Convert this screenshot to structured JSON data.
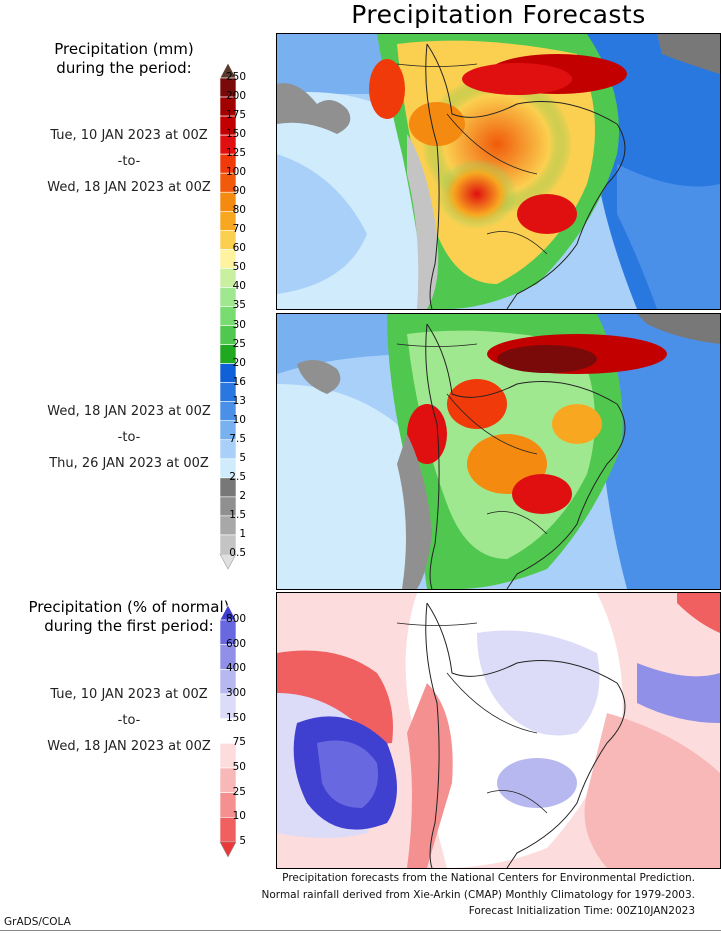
{
  "title": "Precipitation Forecasts",
  "legend_mm": {
    "heading": [
      "Precipitation (mm)",
      "during the period:"
    ],
    "labels": [
      "250",
      "200",
      "175",
      "150",
      "125",
      "100",
      "90",
      "80",
      "70",
      "60",
      "50",
      "40",
      "35",
      "30",
      "25",
      "20",
      "16",
      "13",
      "10",
      "7.5",
      "5",
      "2.5",
      "2",
      "1.5",
      "1",
      "0.5"
    ],
    "colors": [
      "#5a3a2e",
      "#7a0a0a",
      "#a00000",
      "#c20000",
      "#e01010",
      "#f03a0a",
      "#f05a0a",
      "#f58a10",
      "#f8a820",
      "#fbd050",
      "#fff3a0",
      "#c8f0a0",
      "#a0e890",
      "#78dc70",
      "#50c850",
      "#20a820",
      "#1060d8",
      "#2878e0",
      "#4a90e8",
      "#78b0f0",
      "#a8d0f8",
      "#d0ecfc",
      "#787878",
      "#909090",
      "#a8a8a8",
      "#c4c4c4",
      "#e0e0e0"
    ]
  },
  "legend_pct": {
    "heading": [
      "Precipitation (% of normal)",
      "during the first period:"
    ],
    "labels": [
      "800",
      "600",
      "400",
      "300",
      "150",
      "75",
      "50",
      "25",
      "10",
      "5"
    ],
    "colors": [
      "#4040d0",
      "#6868e0",
      "#9090e8",
      "#b8b8f0",
      "#dcdcf8",
      "#ffffff",
      "#fcdcdc",
      "#f8b8b8",
      "#f49090",
      "#f06060",
      "#e83838"
    ]
  },
  "periods": [
    {
      "from": "Tue, 10 JAN 2023 at 00Z",
      "sep": "-to-",
      "to": "Wed, 18 JAN 2023 at 00Z"
    },
    {
      "from": "Wed, 18 JAN 2023 at 00Z",
      "sep": "-to-",
      "to": "Thu, 26 JAN 2023 at 00Z"
    },
    {
      "from": "Tue, 10 JAN 2023 at 00Z",
      "sep": "-to-",
      "to": "Wed, 18 JAN 2023 at 00Z"
    }
  ],
  "footer": [
    "Precipitation forecasts from the National Centers for Environmental Prediction.",
    "Normal rainfall derived from Xie-Arkin (CMAP) Monthly Climatology for 1979-2003.",
    "Forecast Initialization Time: 00Z10JAN2023"
  ],
  "credit": "GrADS/COLA"
}
